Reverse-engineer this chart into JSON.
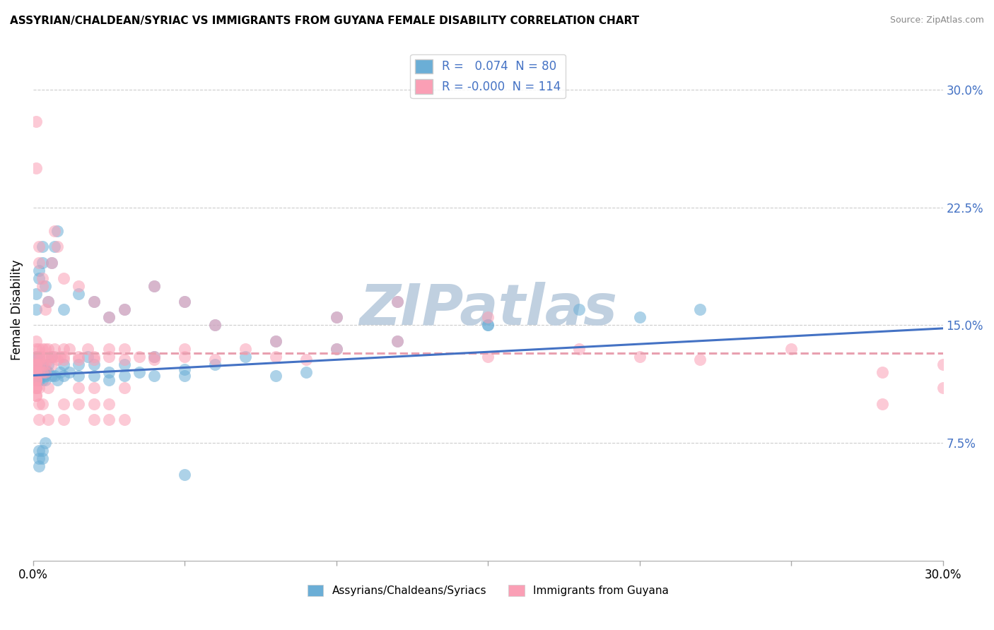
{
  "title": "ASSYRIAN/CHALDEAN/SYRIAC VS IMMIGRANTS FROM GUYANA FEMALE DISABILITY CORRELATION CHART",
  "source": "Source: ZipAtlas.com",
  "xlabel_bottom": [
    "Assyrians/Chaldeans/Syriacs",
    "Immigrants from Guyana"
  ],
  "ylabel": "Female Disability",
  "series": [
    {
      "label": "Assyrians/Chaldeans/Syriacs",
      "color": "#6baed6",
      "R": 0.074,
      "N": 80,
      "x": [
        0.001,
        0.001,
        0.001,
        0.001,
        0.002,
        0.002,
        0.002,
        0.002,
        0.002,
        0.003,
        0.003,
        0.003,
        0.003,
        0.004,
        0.004,
        0.004,
        0.005,
        0.005,
        0.006,
        0.006,
        0.007,
        0.008,
        0.009,
        0.01,
        0.01,
        0.012,
        0.015,
        0.015,
        0.018,
        0.02,
        0.02,
        0.025,
        0.025,
        0.03,
        0.03,
        0.035,
        0.04,
        0.04,
        0.05,
        0.05,
        0.06,
        0.07,
        0.08,
        0.09,
        0.1,
        0.12,
        0.15,
        0.18,
        0.2,
        0.22,
        0.001,
        0.001,
        0.002,
        0.002,
        0.003,
        0.003,
        0.004,
        0.005,
        0.006,
        0.007,
        0.008,
        0.01,
        0.015,
        0.02,
        0.025,
        0.03,
        0.04,
        0.05,
        0.06,
        0.08,
        0.1,
        0.12,
        0.15,
        0.05,
        0.002,
        0.003,
        0.004,
        0.002,
        0.003,
        0.002
      ],
      "y": [
        0.13,
        0.115,
        0.12,
        0.125,
        0.118,
        0.122,
        0.13,
        0.115,
        0.12,
        0.118,
        0.125,
        0.115,
        0.12,
        0.118,
        0.122,
        0.115,
        0.12,
        0.125,
        0.118,
        0.13,
        0.118,
        0.115,
        0.12,
        0.118,
        0.125,
        0.12,
        0.118,
        0.125,
        0.13,
        0.118,
        0.125,
        0.12,
        0.115,
        0.118,
        0.125,
        0.12,
        0.13,
        0.118,
        0.122,
        0.118,
        0.125,
        0.13,
        0.118,
        0.12,
        0.135,
        0.14,
        0.15,
        0.16,
        0.155,
        0.16,
        0.16,
        0.17,
        0.18,
        0.185,
        0.19,
        0.2,
        0.175,
        0.165,
        0.19,
        0.2,
        0.21,
        0.16,
        0.17,
        0.165,
        0.155,
        0.16,
        0.175,
        0.165,
        0.15,
        0.14,
        0.155,
        0.165,
        0.15,
        0.055,
        0.065,
        0.07,
        0.075,
        0.06,
        0.065,
        0.07
      ]
    },
    {
      "label": "Immigrants from Guyana",
      "color": "#fa9fb5",
      "R": -0.0,
      "N": 114,
      "x": [
        0.001,
        0.001,
        0.001,
        0.001,
        0.001,
        0.002,
        0.002,
        0.002,
        0.002,
        0.002,
        0.003,
        0.003,
        0.003,
        0.003,
        0.004,
        0.004,
        0.004,
        0.005,
        0.005,
        0.005,
        0.006,
        0.006,
        0.007,
        0.007,
        0.008,
        0.009,
        0.01,
        0.01,
        0.01,
        0.012,
        0.015,
        0.015,
        0.018,
        0.02,
        0.02,
        0.025,
        0.025,
        0.03,
        0.03,
        0.035,
        0.04,
        0.04,
        0.05,
        0.05,
        0.06,
        0.07,
        0.08,
        0.09,
        0.1,
        0.12,
        0.15,
        0.18,
        0.2,
        0.22,
        0.25,
        0.28,
        0.3,
        0.28,
        0.3,
        0.001,
        0.001,
        0.002,
        0.002,
        0.003,
        0.003,
        0.004,
        0.005,
        0.006,
        0.007,
        0.008,
        0.01,
        0.015,
        0.02,
        0.025,
        0.03,
        0.04,
        0.05,
        0.06,
        0.08,
        0.1,
        0.12,
        0.15,
        0.02,
        0.02,
        0.02,
        0.025,
        0.025,
        0.03,
        0.03,
        0.015,
        0.015,
        0.01,
        0.01,
        0.005,
        0.005,
        0.003,
        0.002,
        0.002,
        0.002,
        0.001,
        0.001,
        0.001,
        0.001,
        0.001,
        0.001,
        0.001,
        0.001,
        0.001,
        0.001,
        0.001,
        0.001,
        0.001,
        0.001,
        0.001
      ],
      "y": [
        0.13,
        0.125,
        0.12,
        0.135,
        0.14,
        0.125,
        0.13,
        0.135,
        0.128,
        0.12,
        0.13,
        0.135,
        0.12,
        0.125,
        0.135,
        0.12,
        0.125,
        0.13,
        0.135,
        0.128,
        0.13,
        0.125,
        0.13,
        0.135,
        0.128,
        0.13,
        0.13,
        0.135,
        0.128,
        0.135,
        0.13,
        0.128,
        0.135,
        0.13,
        0.128,
        0.135,
        0.13,
        0.128,
        0.135,
        0.13,
        0.13,
        0.128,
        0.135,
        0.13,
        0.128,
        0.135,
        0.13,
        0.128,
        0.135,
        0.14,
        0.13,
        0.135,
        0.13,
        0.128,
        0.135,
        0.1,
        0.11,
        0.12,
        0.125,
        0.25,
        0.28,
        0.2,
        0.19,
        0.18,
        0.175,
        0.16,
        0.165,
        0.19,
        0.21,
        0.2,
        0.18,
        0.175,
        0.165,
        0.155,
        0.16,
        0.175,
        0.165,
        0.15,
        0.14,
        0.155,
        0.165,
        0.155,
        0.09,
        0.1,
        0.11,
        0.09,
        0.1,
        0.11,
        0.09,
        0.1,
        0.11,
        0.09,
        0.1,
        0.11,
        0.09,
        0.1,
        0.09,
        0.1,
        0.11,
        0.12,
        0.115,
        0.11,
        0.115,
        0.12,
        0.125,
        0.105,
        0.12,
        0.11,
        0.115,
        0.12,
        0.125,
        0.105,
        0.11,
        0.115
      ]
    }
  ],
  "xlim": [
    0,
    0.3
  ],
  "ylim": [
    0,
    0.32
  ],
  "xticks": [
    0.0,
    0.05,
    0.1,
    0.15,
    0.2,
    0.25,
    0.3
  ],
  "xticklabels_show": [
    "0.0%",
    "",
    "",
    "",
    "",
    "",
    "30.0%"
  ],
  "yticks": [
    0.075,
    0.15,
    0.225,
    0.3
  ],
  "yticklabels": [
    "7.5%",
    "15.0%",
    "22.5%",
    "30.0%"
  ],
  "grid_color": "#cccccc",
  "watermark": "ZIPatlas",
  "watermark_color": "#c0d0e0",
  "legend_R_color": "#4472c4",
  "trend_blue_start": 0.118,
  "trend_blue_end": 0.148,
  "trend_pink_start": 0.132,
  "trend_pink_end": 0.132,
  "trend_blue_color": "#4472c4",
  "trend_pink_color": "#e8a0b0"
}
